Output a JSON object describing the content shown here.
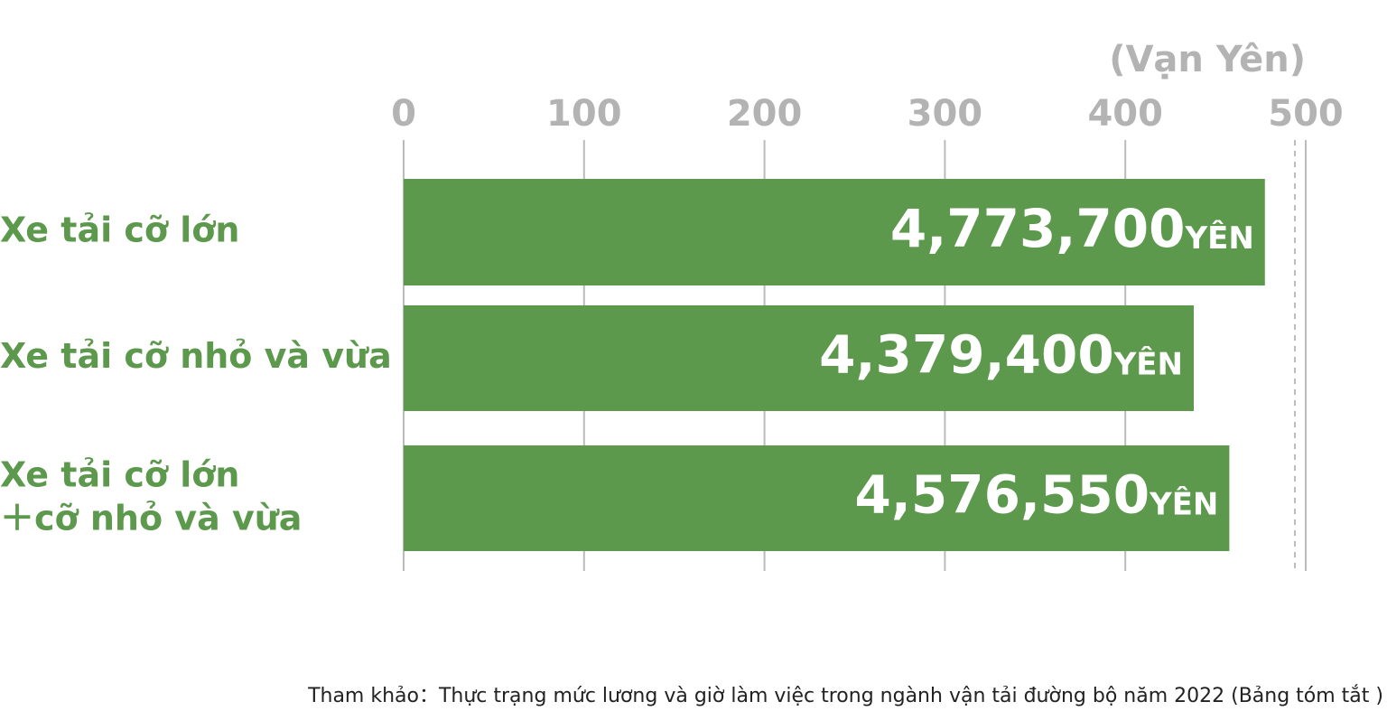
{
  "chart_data": {
    "type": "hbar",
    "x_label": "(Vạn Yên)",
    "categories": [
      "Xe tải cỡ lớn",
      "Xe tải cỡ nhỏ và vừa",
      "Xe tải cỡ lớn\n＋cỡ nhỏ và vừa"
    ],
    "values": [
      477.37,
      437.94,
      457.655
    ],
    "value_labels": [
      "4,773,700YÊN",
      "4,379,400YÊN",
      "4,576,550YÊN"
    ],
    "color": "#5c994d",
    "xlim": [
      0,
      500
    ],
    "xticks": [
      0,
      100,
      200,
      300,
      400,
      500
    ],
    "grid": true,
    "source": "Tham khảo：Thực trạng mức lương và giờ làm việc trong ngành vận tải đường bộ năm 2022 (Bảng tóm tắt )"
  }
}
